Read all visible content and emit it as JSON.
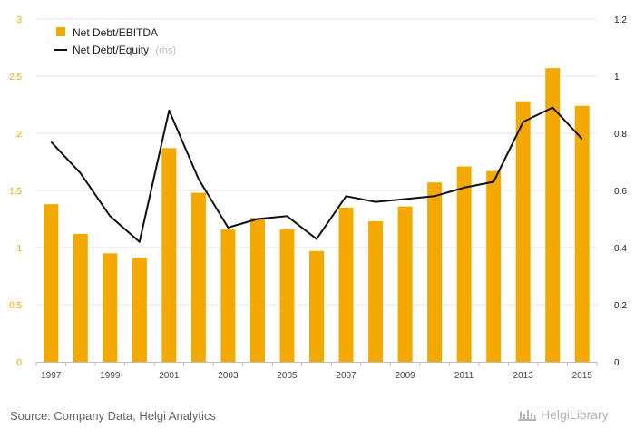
{
  "chart_data": {
    "type": "bar",
    "categories": [
      "1997",
      "1998",
      "1999",
      "2000",
      "2001",
      "2002",
      "2003",
      "2004",
      "2005",
      "2006",
      "2007",
      "2008",
      "2009",
      "2010",
      "2011",
      "2012",
      "2013",
      "2014",
      "2015"
    ],
    "x_tick_labels": [
      "1997",
      "1999",
      "2001",
      "2003",
      "2005",
      "2007",
      "2009",
      "2011",
      "2013",
      "2015"
    ],
    "series": [
      {
        "name": "Net Debt/EBITDA",
        "type": "bar",
        "axis": "left",
        "color": "#f4a900",
        "values": [
          1.38,
          1.12,
          0.95,
          0.91,
          1.87,
          1.48,
          1.16,
          1.26,
          1.16,
          0.97,
          1.35,
          1.23,
          1.36,
          1.57,
          1.71,
          1.67,
          2.28,
          2.57,
          2.24
        ]
      },
      {
        "name": "Net Debt/Equity",
        "type": "line",
        "axis": "right",
        "color": "#111111",
        "values": [
          0.77,
          0.66,
          0.51,
          0.42,
          0.88,
          0.64,
          0.47,
          0.5,
          0.51,
          0.43,
          0.58,
          0.56,
          0.57,
          0.58,
          0.61,
          0.63,
          0.84,
          0.89,
          0.78
        ]
      }
    ],
    "y_left": {
      "lim": [
        0,
        3
      ],
      "ticks": [
        "0",
        "0.5",
        "1",
        "1.5",
        "2",
        "2.5",
        "3"
      ]
    },
    "y_right": {
      "lim": [
        0,
        1.2
      ],
      "ticks": [
        "0",
        "0.2",
        "0.4",
        "0.6",
        "0.8",
        "1",
        "1.2"
      ]
    },
    "legend": {
      "position": "top-left",
      "items": [
        {
          "label": "Net Debt/EBITDA",
          "marker": "square",
          "color": "#f4a900"
        },
        {
          "label": "Net Debt/Equity",
          "note": "(rhs)",
          "marker": "line",
          "color": "#111111"
        }
      ]
    },
    "grid": "horizontal"
  },
  "footer": {
    "source": "Source: Company Data, Helgi Analytics",
    "brand": "HelgiLibrary"
  }
}
